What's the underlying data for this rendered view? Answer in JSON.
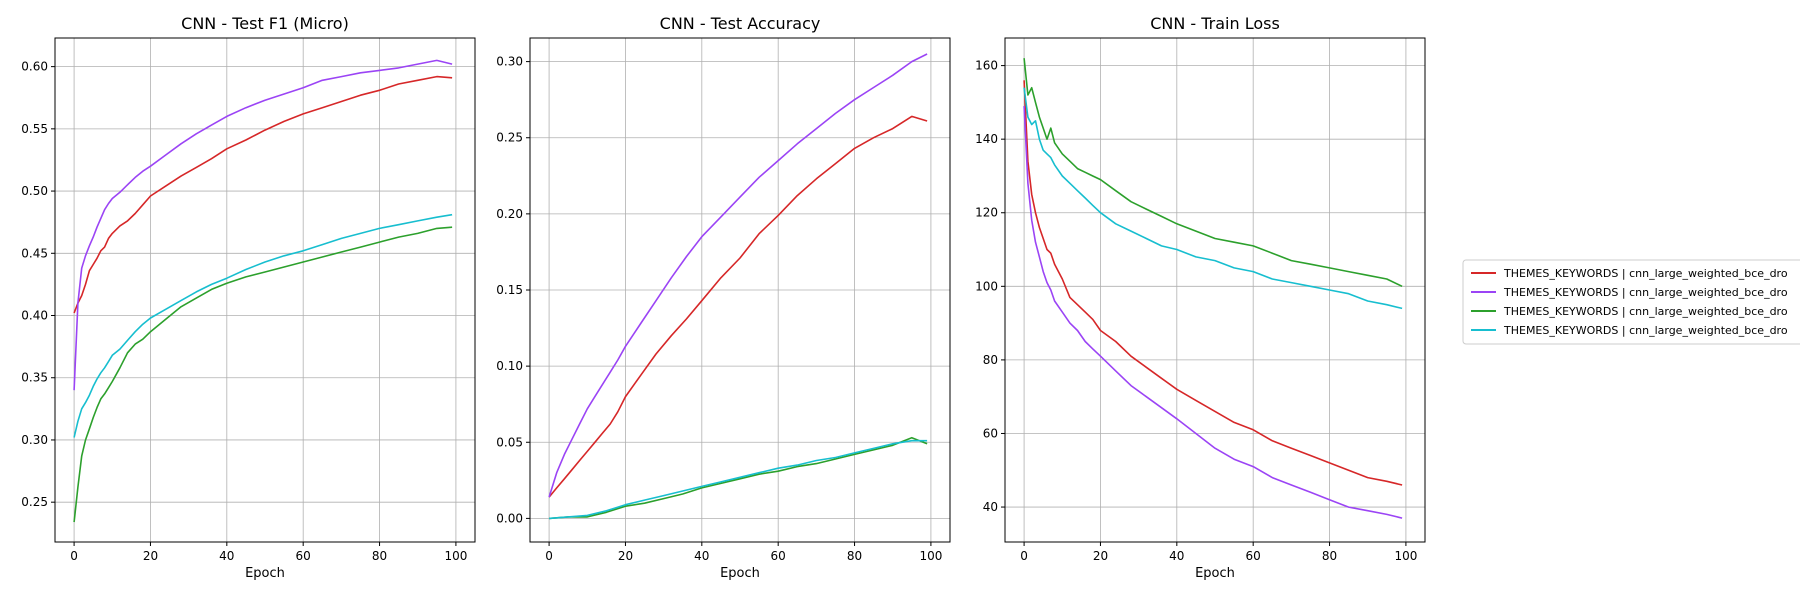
{
  "chart_data": [
    {
      "type": "line",
      "title": "CNN - Test F1 (Micro)",
      "xlabel": "Epoch",
      "ylabel": "",
      "xlim": [
        -5,
        105
      ],
      "ylim": [
        0.218,
        0.623
      ],
      "xticks": [
        0,
        20,
        40,
        60,
        80,
        100
      ],
      "xtick_labels": [
        "0",
        "20",
        "40",
        "60",
        "80",
        "100"
      ],
      "yticks": [
        0.25,
        0.3,
        0.35,
        0.4,
        0.45,
        0.5,
        0.55,
        0.6
      ],
      "ytick_labels": [
        "0.25",
        "0.30",
        "0.35",
        "0.40",
        "0.45",
        "0.50",
        "0.55",
        "0.60"
      ],
      "grid": true,
      "series": [
        {
          "color": "#d62728",
          "x": [
            0,
            1,
            2,
            3,
            4,
            5,
            6,
            7,
            8,
            9,
            10,
            12,
            14,
            16,
            18,
            20,
            24,
            28,
            32,
            36,
            40,
            45,
            50,
            55,
            60,
            65,
            70,
            75,
            80,
            85,
            90,
            95,
            99
          ],
          "values": [
            0.402,
            0.41,
            0.416,
            0.425,
            0.436,
            0.441,
            0.446,
            0.452,
            0.455,
            0.462,
            0.466,
            0.472,
            0.476,
            0.482,
            0.489,
            0.496,
            0.504,
            0.512,
            0.519,
            0.526,
            0.534,
            0.541,
            0.549,
            0.556,
            0.562,
            0.567,
            0.572,
            0.577,
            0.581,
            0.586,
            0.589,
            0.592,
            0.591
          ]
        },
        {
          "color": "#9b44f5",
          "x": [
            0,
            1,
            2,
            3,
            4,
            5,
            6,
            7,
            8,
            9,
            10,
            12,
            14,
            16,
            18,
            20,
            24,
            28,
            32,
            36,
            40,
            45,
            50,
            55,
            60,
            65,
            70,
            75,
            80,
            85,
            90,
            95,
            99
          ],
          "values": [
            0.34,
            0.41,
            0.438,
            0.448,
            0.456,
            0.463,
            0.471,
            0.478,
            0.485,
            0.49,
            0.494,
            0.499,
            0.505,
            0.511,
            0.516,
            0.52,
            0.529,
            0.538,
            0.546,
            0.553,
            0.56,
            0.567,
            0.573,
            0.578,
            0.583,
            0.589,
            0.592,
            0.595,
            0.597,
            0.599,
            0.602,
            0.605,
            0.602
          ]
        },
        {
          "color": "#2ca02c",
          "x": [
            0,
            1,
            2,
            3,
            4,
            5,
            6,
            7,
            8,
            9,
            10,
            12,
            14,
            16,
            18,
            20,
            24,
            28,
            32,
            36,
            40,
            45,
            50,
            55,
            60,
            65,
            70,
            75,
            80,
            85,
            90,
            95,
            99
          ],
          "values": [
            0.234,
            0.262,
            0.287,
            0.3,
            0.309,
            0.318,
            0.326,
            0.333,
            0.337,
            0.342,
            0.347,
            0.358,
            0.37,
            0.377,
            0.381,
            0.387,
            0.397,
            0.407,
            0.414,
            0.421,
            0.426,
            0.431,
            0.435,
            0.439,
            0.443,
            0.447,
            0.451,
            0.455,
            0.459,
            0.463,
            0.466,
            0.47,
            0.471
          ]
        },
        {
          "color": "#17becf",
          "x": [
            0,
            1,
            2,
            3,
            4,
            5,
            6,
            7,
            8,
            9,
            10,
            12,
            14,
            16,
            18,
            20,
            24,
            28,
            32,
            36,
            40,
            45,
            50,
            55,
            60,
            65,
            70,
            75,
            80,
            85,
            90,
            95,
            99
          ],
          "values": [
            0.302,
            0.315,
            0.325,
            0.33,
            0.336,
            0.343,
            0.349,
            0.354,
            0.358,
            0.363,
            0.368,
            0.373,
            0.38,
            0.387,
            0.393,
            0.398,
            0.405,
            0.412,
            0.419,
            0.425,
            0.43,
            0.437,
            0.443,
            0.448,
            0.452,
            0.457,
            0.462,
            0.466,
            0.47,
            0.473,
            0.476,
            0.479,
            0.481
          ]
        }
      ]
    },
    {
      "type": "line",
      "title": "CNN - Test Accuracy",
      "xlabel": "Epoch",
      "ylabel": "",
      "xlim": [
        -5,
        105
      ],
      "ylim": [
        -0.0155,
        0.3155
      ],
      "xticks": [
        0,
        20,
        40,
        60,
        80,
        100
      ],
      "xtick_labels": [
        "0",
        "20",
        "40",
        "60",
        "80",
        "100"
      ],
      "yticks": [
        0.0,
        0.05,
        0.1,
        0.15,
        0.2,
        0.25,
        0.3
      ],
      "ytick_labels": [
        "0.00",
        "0.05",
        "0.10",
        "0.15",
        "0.20",
        "0.25",
        "0.30"
      ],
      "grid": true,
      "series": [
        {
          "color": "#d62728",
          "x": [
            0,
            2,
            4,
            6,
            8,
            10,
            12,
            14,
            16,
            18,
            20,
            24,
            28,
            32,
            36,
            40,
            45,
            50,
            55,
            60,
            65,
            70,
            75,
            80,
            85,
            90,
            95,
            99
          ],
          "values": [
            0.014,
            0.02,
            0.026,
            0.032,
            0.038,
            0.044,
            0.05,
            0.056,
            0.062,
            0.07,
            0.08,
            0.094,
            0.108,
            0.12,
            0.131,
            0.143,
            0.158,
            0.171,
            0.187,
            0.199,
            0.212,
            0.223,
            0.233,
            0.243,
            0.25,
            0.256,
            0.264,
            0.261
          ]
        },
        {
          "color": "#9b44f5",
          "x": [
            0,
            2,
            4,
            6,
            8,
            10,
            12,
            14,
            16,
            18,
            20,
            24,
            28,
            32,
            36,
            40,
            45,
            50,
            55,
            60,
            65,
            70,
            75,
            80,
            85,
            90,
            95,
            99
          ],
          "values": [
            0.014,
            0.03,
            0.042,
            0.052,
            0.062,
            0.072,
            0.08,
            0.088,
            0.096,
            0.104,
            0.113,
            0.128,
            0.143,
            0.158,
            0.172,
            0.185,
            0.198,
            0.211,
            0.224,
            0.235,
            0.246,
            0.256,
            0.266,
            0.275,
            0.283,
            0.291,
            0.3,
            0.305
          ]
        },
        {
          "color": "#2ca02c",
          "x": [
            0,
            5,
            10,
            15,
            20,
            25,
            30,
            35,
            40,
            45,
            50,
            55,
            60,
            65,
            70,
            75,
            80,
            85,
            90,
            95,
            99
          ],
          "values": [
            0.0,
            0.001,
            0.001,
            0.004,
            0.008,
            0.01,
            0.013,
            0.016,
            0.02,
            0.023,
            0.026,
            0.029,
            0.031,
            0.034,
            0.036,
            0.039,
            0.042,
            0.045,
            0.048,
            0.053,
            0.049
          ]
        },
        {
          "color": "#17becf",
          "x": [
            0,
            5,
            10,
            15,
            20,
            25,
            30,
            35,
            40,
            45,
            50,
            55,
            60,
            65,
            70,
            75,
            80,
            85,
            90,
            95,
            99
          ],
          "values": [
            0.0,
            0.001,
            0.002,
            0.005,
            0.009,
            0.012,
            0.015,
            0.018,
            0.021,
            0.024,
            0.027,
            0.03,
            0.033,
            0.035,
            0.038,
            0.04,
            0.043,
            0.046,
            0.049,
            0.051,
            0.051
          ]
        }
      ]
    },
    {
      "type": "line",
      "title": "CNN - Train Loss",
      "xlabel": "Epoch",
      "ylabel": "",
      "xlim": [
        -5,
        105
      ],
      "ylim": [
        30.5,
        167.5
      ],
      "xticks": [
        0,
        20,
        40,
        60,
        80,
        100
      ],
      "xtick_labels": [
        "0",
        "20",
        "40",
        "60",
        "80",
        "100"
      ],
      "yticks": [
        40,
        60,
        80,
        100,
        120,
        140,
        160
      ],
      "ytick_labels": [
        "40",
        "60",
        "80",
        "100",
        "120",
        "140",
        "160"
      ],
      "grid": true,
      "series": [
        {
          "color": "#d62728",
          "x": [
            0,
            1,
            2,
            3,
            4,
            5,
            6,
            7,
            8,
            10,
            12,
            14,
            16,
            18,
            20,
            24,
            28,
            32,
            36,
            40,
            45,
            50,
            55,
            60,
            65,
            70,
            75,
            80,
            85,
            90,
            95,
            99
          ],
          "values": [
            156,
            134,
            125,
            120,
            116,
            113,
            110,
            109,
            106,
            102,
            97,
            95,
            93,
            91,
            88,
            85,
            81,
            78,
            75,
            72,
            69,
            66,
            63,
            61,
            58,
            56,
            54,
            52,
            50,
            48,
            47,
            46
          ]
        },
        {
          "color": "#9b44f5",
          "x": [
            0,
            1,
            2,
            3,
            4,
            5,
            6,
            7,
            8,
            10,
            12,
            14,
            16,
            18,
            20,
            24,
            28,
            32,
            36,
            40,
            45,
            50,
            55,
            60,
            65,
            70,
            75,
            80,
            85,
            90,
            95,
            99
          ],
          "values": [
            149,
            128,
            118,
            112,
            108,
            104,
            101,
            99,
            96,
            93,
            90,
            88,
            85,
            83,
            81,
            77,
            73,
            70,
            67,
            64,
            60,
            56,
            53,
            51,
            48,
            46,
            44,
            42,
            40,
            39,
            38,
            37
          ]
        },
        {
          "color": "#2ca02c",
          "x": [
            0,
            1,
            2,
            3,
            4,
            5,
            6,
            7,
            8,
            10,
            12,
            14,
            16,
            18,
            20,
            24,
            28,
            32,
            36,
            40,
            45,
            50,
            55,
            60,
            65,
            70,
            75,
            80,
            85,
            90,
            95,
            99
          ],
          "values": [
            162,
            152,
            154,
            150,
            146,
            143,
            140,
            143,
            139,
            136,
            134,
            132,
            131,
            130,
            129,
            126,
            123,
            121,
            119,
            117,
            115,
            113,
            112,
            111,
            109,
            107,
            106,
            105,
            104,
            103,
            102,
            100
          ]
        },
        {
          "color": "#17becf",
          "x": [
            0,
            1,
            2,
            3,
            4,
            5,
            6,
            7,
            8,
            10,
            12,
            14,
            16,
            18,
            20,
            24,
            28,
            32,
            36,
            40,
            45,
            50,
            55,
            60,
            65,
            70,
            75,
            80,
            85,
            90,
            95,
            99
          ],
          "values": [
            154,
            146,
            144,
            145,
            140,
            137,
            136,
            135,
            133,
            130,
            128,
            126,
            124,
            122,
            120,
            117,
            115,
            113,
            111,
            110,
            108,
            107,
            105,
            104,
            102,
            101,
            100,
            99,
            98,
            96,
            95,
            94
          ]
        }
      ]
    }
  ],
  "legend": {
    "placement": "right",
    "entries": [
      {
        "color": "#d62728",
        "label": "THEMES_KEYWORDS | cnn_large_weighted_bce_dro"
      },
      {
        "color": "#9b44f5",
        "label": "THEMES_KEYWORDS | cnn_large_weighted_bce_dro"
      },
      {
        "color": "#2ca02c",
        "label": "THEMES_KEYWORDS | cnn_large_weighted_bce_dro"
      },
      {
        "color": "#17becf",
        "label": "THEMES_KEYWORDS | cnn_large_weighted_bce_dro"
      }
    ]
  }
}
